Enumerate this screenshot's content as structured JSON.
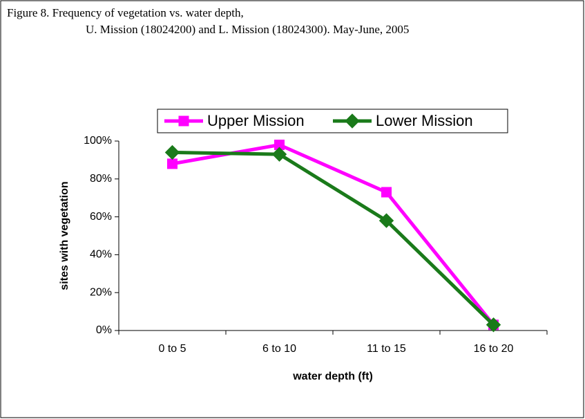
{
  "chart_data": {
    "type": "line",
    "title": "Figure 8.  Frequency of vegetation vs. water depth,",
    "subtitle": "U. Mission (18024200) and L. Mission (18024300). May-June, 2005",
    "x_label": "water depth (ft)",
    "y_label": "sites with vegetation",
    "categories": [
      "0 to 5",
      "6 to 10",
      "11 to 15",
      "16 to 20"
    ],
    "series": [
      {
        "name": "Upper Mission",
        "color": "#ff00ff",
        "marker": "square",
        "values": [
          88,
          98,
          73,
          3
        ]
      },
      {
        "name": "Lower Mission",
        "color": "#1a7a1a",
        "marker": "diamond",
        "values": [
          94,
          93,
          58,
          3
        ]
      }
    ],
    "ylim": [
      0,
      100
    ],
    "yticks": [
      {
        "value": 0,
        "label": "0%"
      },
      {
        "value": 20,
        "label": "20%"
      },
      {
        "value": 40,
        "label": "40%"
      },
      {
        "value": 60,
        "label": "60%"
      },
      {
        "value": 80,
        "label": "80%"
      },
      {
        "value": 100,
        "label": "100%"
      }
    ],
    "legend": "top"
  }
}
